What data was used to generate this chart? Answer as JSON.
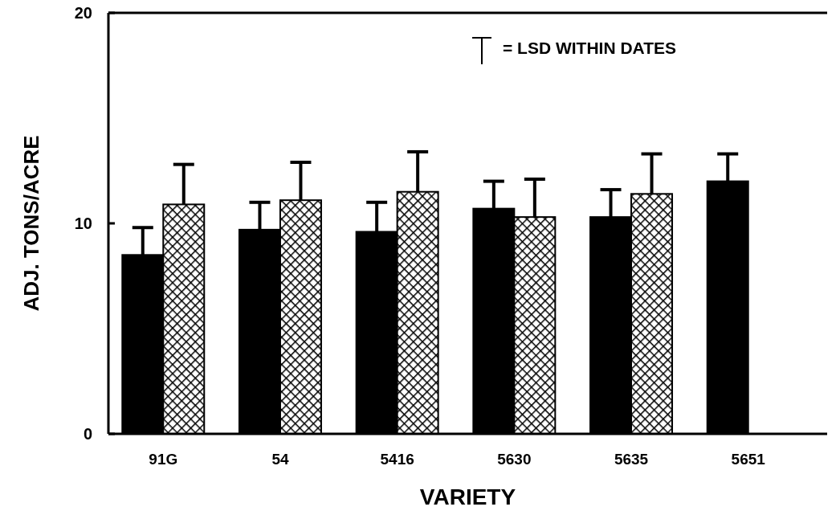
{
  "chart_data": {
    "type": "bar",
    "xlabel": "VARIETY",
    "ylabel": "ADJ. TONS/ACRE",
    "categories": [
      "91G",
      "54",
      "5416",
      "5630",
      "5635",
      "5651"
    ],
    "series": [
      {
        "color": "#000000",
        "values": [
          8.5,
          9.7,
          9.6,
          10.7,
          10.3,
          12.0
        ],
        "errors": [
          [
            8.5,
            9.8
          ],
          [
            9.7,
            11.0
          ],
          [
            9.6,
            11.0
          ],
          [
            10.7,
            12.0
          ],
          [
            10.3,
            11.6
          ],
          [
            12.0,
            13.3
          ]
        ]
      },
      {
        "color": "#000000",
        "values": [
          10.9,
          11.1,
          11.5,
          10.3,
          11.4,
          null
        ],
        "errors": [
          [
            10.9,
            12.8
          ],
          [
            11.1,
            12.9
          ],
          [
            11.5,
            13.4
          ],
          [
            10.3,
            12.1
          ],
          [
            11.4,
            13.3
          ],
          null
        ]
      }
    ],
    "ylim": [
      0,
      20
    ],
    "yticks": [
      0,
      10,
      20
    ],
    "grid": false,
    "annotations": [
      "= LSD WITHIN DATES"
    ]
  }
}
